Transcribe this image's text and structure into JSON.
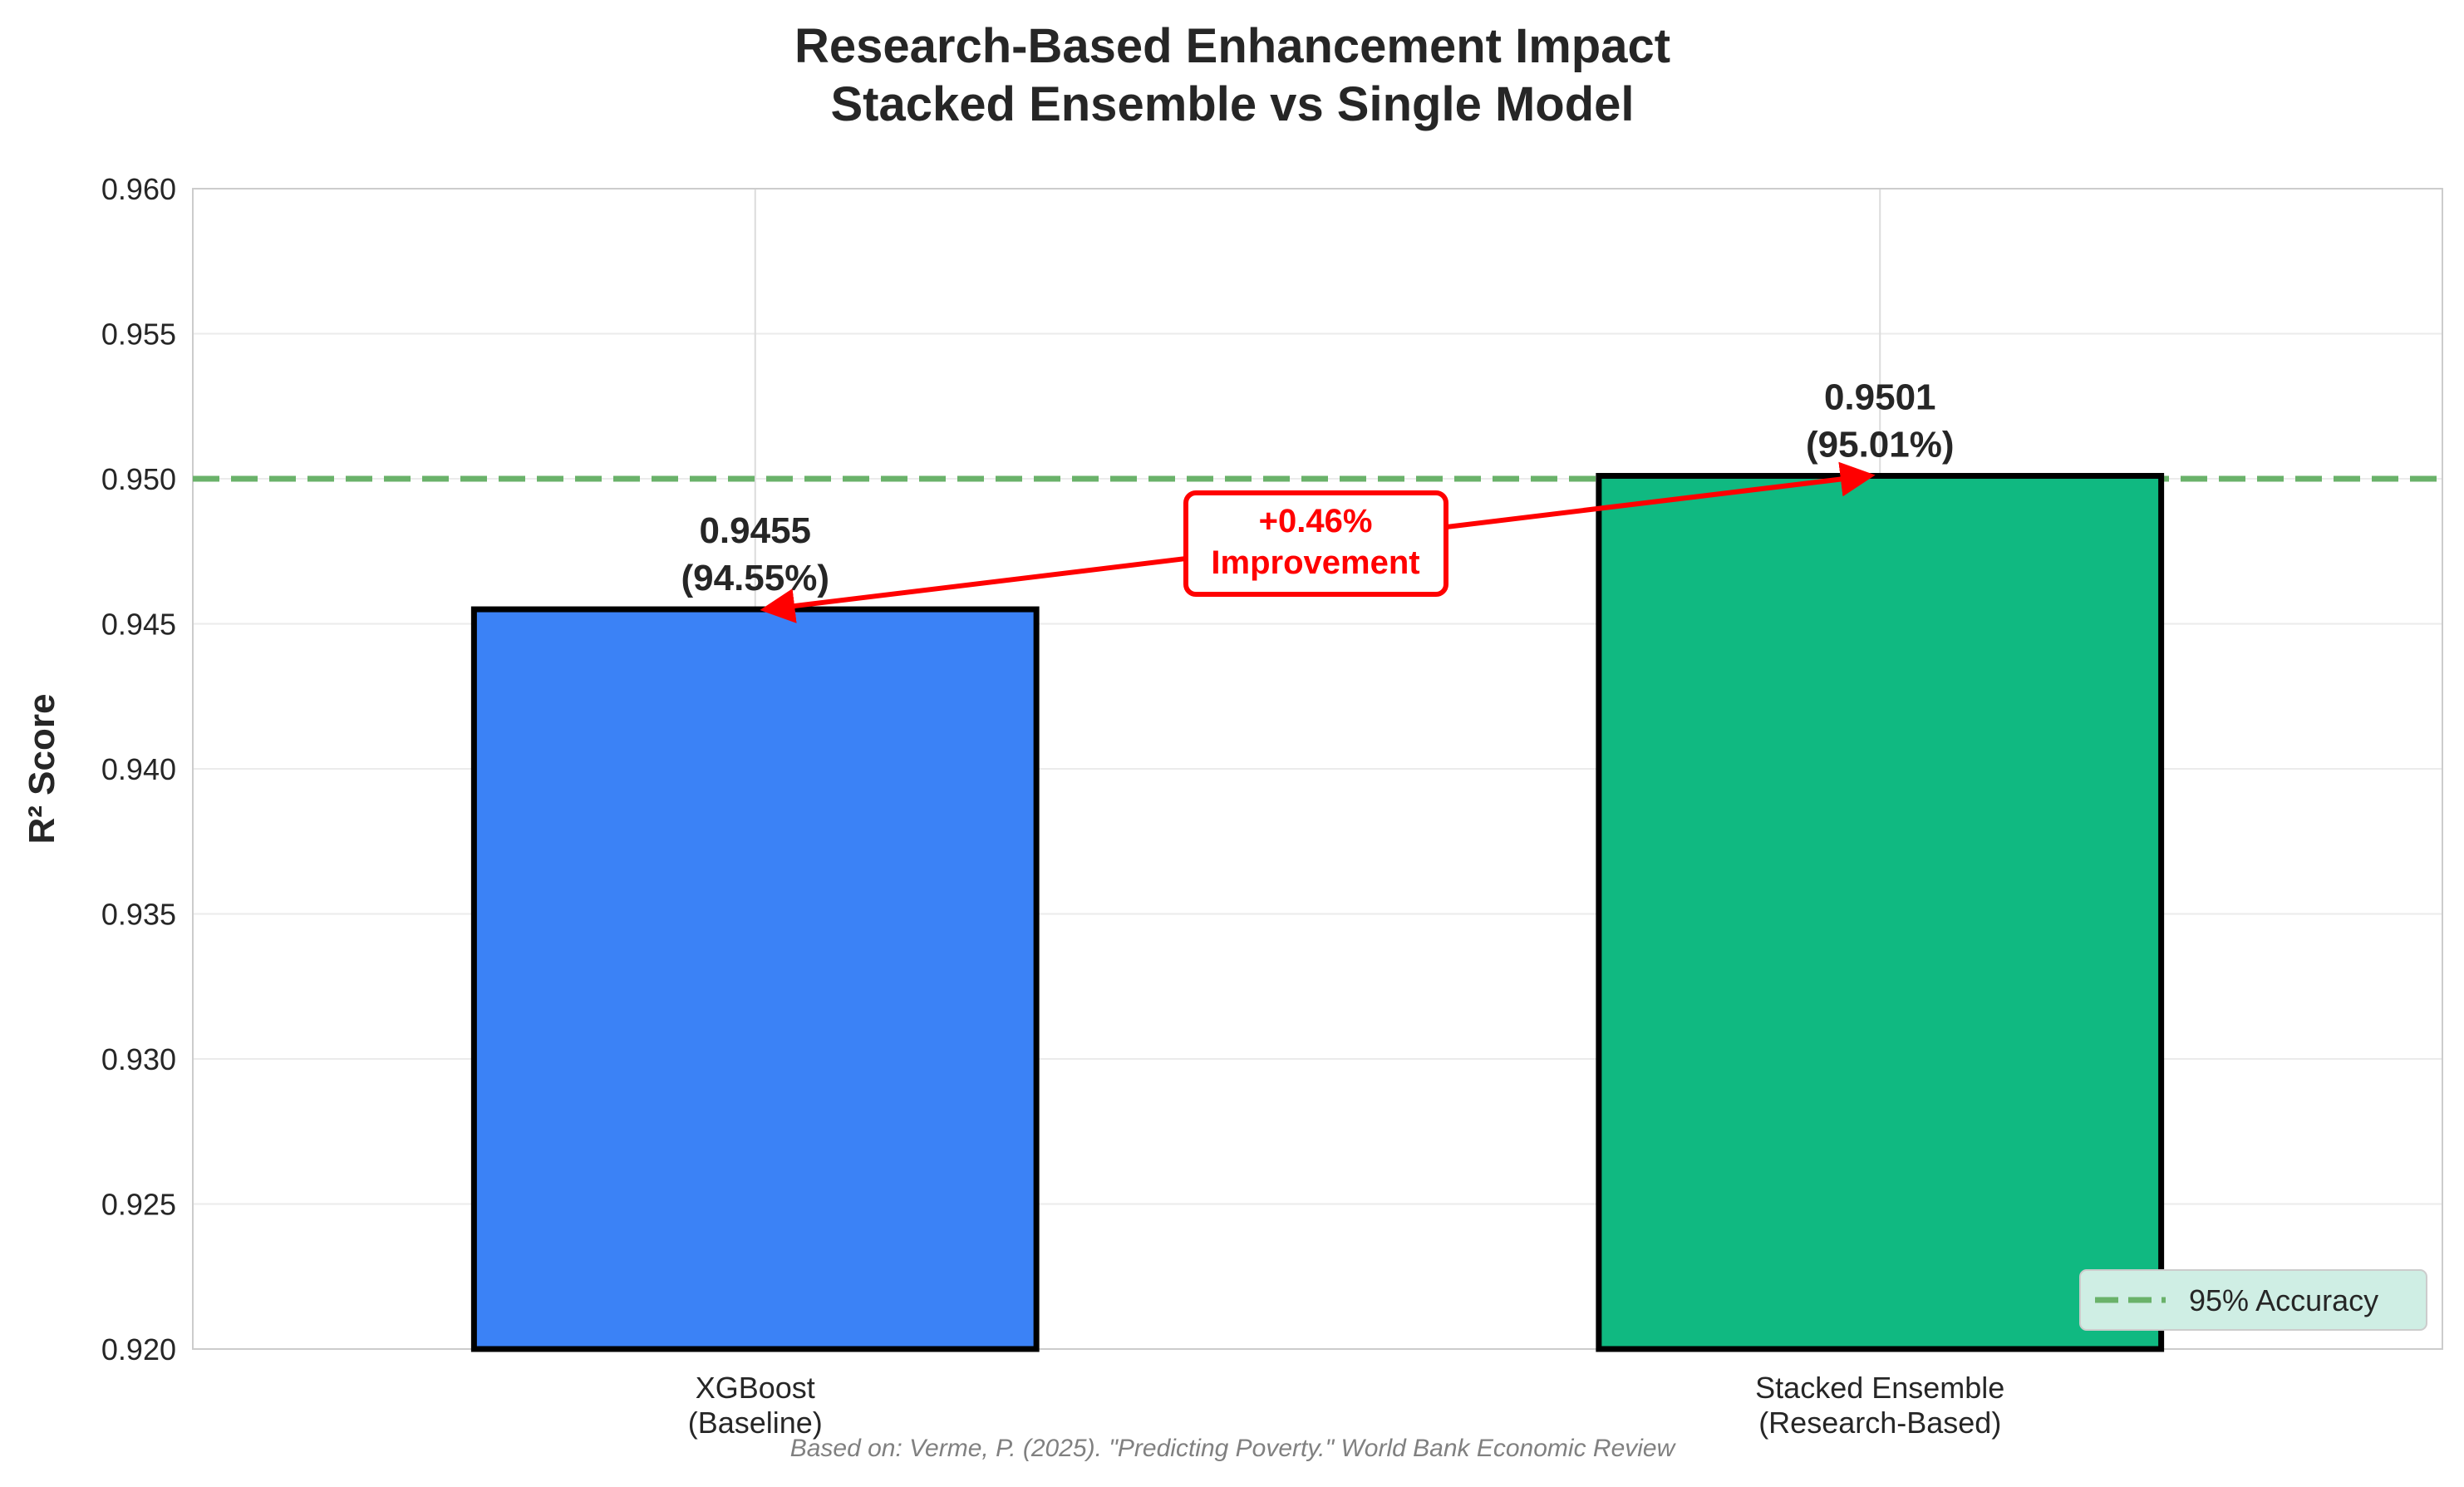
{
  "chart_data": {
    "type": "bar",
    "title_lines": [
      "Research-Based Enhancement Impact",
      "Stacked Ensemble vs Single Model"
    ],
    "ylabel": "R² Score",
    "xlabel": "",
    "ylim": [
      0.92,
      0.96
    ],
    "yticks": [
      "0.920",
      "0.925",
      "0.930",
      "0.935",
      "0.940",
      "0.945",
      "0.950",
      "0.955",
      "0.960"
    ],
    "grid": true,
    "categories": [
      {
        "lines": [
          "XGBoost",
          "(Baseline)"
        ]
      },
      {
        "lines": [
          "Stacked Ensemble",
          "(Research-Based)"
        ]
      }
    ],
    "values": [
      0.9455,
      0.9501
    ],
    "colors": [
      "#3b82f6",
      "#10b981"
    ],
    "data_labels": [
      [
        "0.9455",
        "(94.55%)"
      ],
      [
        "0.9501",
        "(95.01%)"
      ]
    ],
    "reference_line": {
      "value": 0.95,
      "label": "95% Accuracy",
      "color": "#6ab26a",
      "style": "dashed"
    },
    "annotation": {
      "lines": [
        "+0.46%",
        "Improvement"
      ],
      "color": "#ff0000",
      "from": 0,
      "to": 1
    },
    "legend_position": "lower-right",
    "footnote": "Based on: Verme, P. (2025). \"Predicting Poverty.\" World Bank Economic Review"
  }
}
